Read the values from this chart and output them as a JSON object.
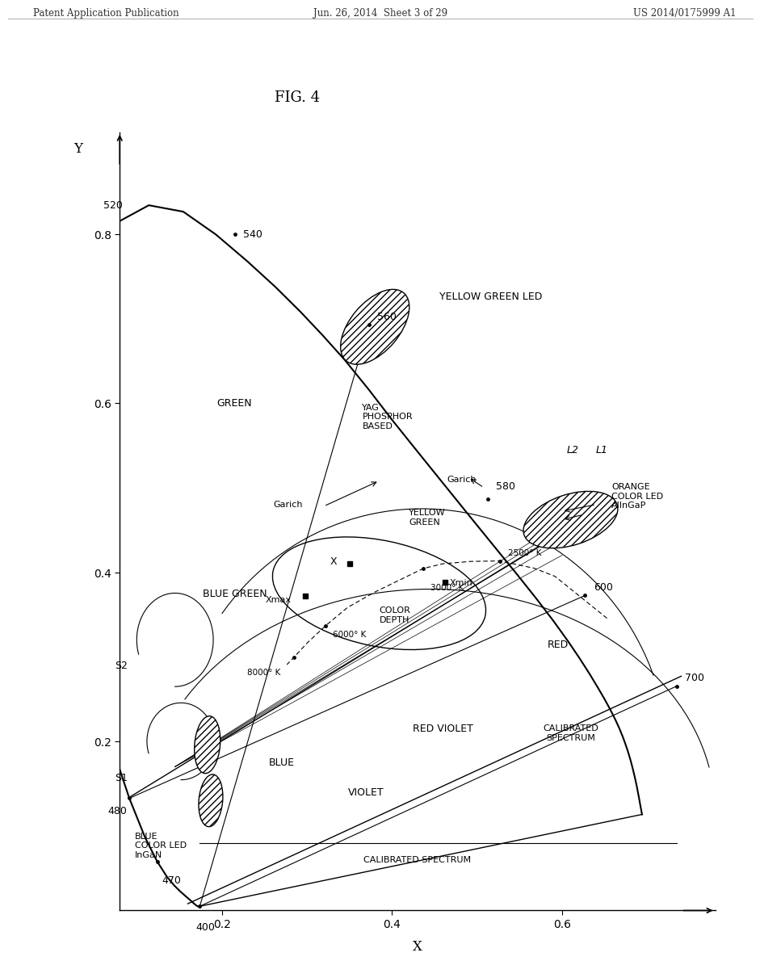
{
  "title": "FIG. 4",
  "header_left": "Patent Application Publication",
  "header_center": "Jun. 26, 2014  Sheet 3 of 29",
  "header_right": "US 2014/0175999 A1",
  "xlabel": "X",
  "ylabel": "Y",
  "xlim": [
    0.08,
    0.78
  ],
  "ylim": [
    0.0,
    0.92
  ],
  "xticks": [
    0.2,
    0.4,
    0.6
  ],
  "yticks": [
    0.2,
    0.4,
    0.6,
    0.8
  ],
  "bg_color": "#ffffff",
  "line_color": "#000000"
}
